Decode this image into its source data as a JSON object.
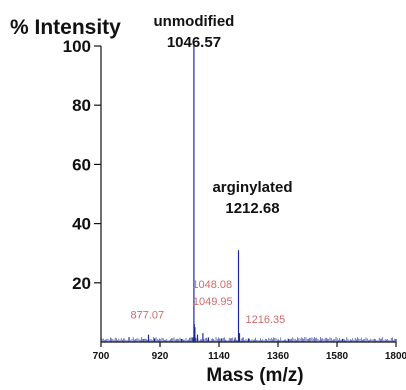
{
  "chart_data": {
    "type": "line",
    "ylabel": "% Intensity",
    "xlabel": "Mass (m/z)",
    "xlim": [
      700,
      1800
    ],
    "ylim": [
      0,
      100
    ],
    "x_ticks": [
      700,
      920,
      1140,
      1360,
      1580,
      1800
    ],
    "y_ticks": [
      20,
      40,
      60,
      80,
      100
    ],
    "grid": false,
    "line_color": "#1a2a9c",
    "series": [
      {
        "x": [
          700,
          860,
          877.07,
          900,
          1000,
          1040,
          1046.57,
          1048.08,
          1049.95,
          1060,
          1080,
          1100,
          1150,
          1200,
          1212.68,
          1216.35,
          1250,
          1400,
          1600,
          1800
        ],
        "values": [
          1,
          1,
          2.5,
          1.2,
          1,
          1.5,
          100,
          6,
          5,
          2.5,
          3,
          1.5,
          1.2,
          1.5,
          31,
          3,
          1.2,
          1,
          1,
          1
        ]
      }
    ],
    "annotations": [
      {
        "name": "unmodified",
        "mass": "1046.57",
        "x": 1046.57,
        "y": 100
      },
      {
        "name": "arginylated",
        "mass": "1212.68",
        "x": 1212.68,
        "y": 31
      }
    ],
    "minor_labels": [
      {
        "text": "877.07",
        "x": 877.07,
        "y": 2.5
      },
      {
        "text": "1048.08",
        "x": 1048.08,
        "y": 6
      },
      {
        "text": "1049.95",
        "x": 1049.95,
        "y": 5
      },
      {
        "text": "1216.35",
        "x": 1216.35,
        "y": 3
      }
    ]
  }
}
